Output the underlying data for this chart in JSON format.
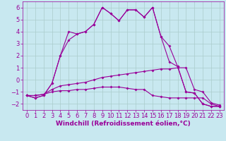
{
  "x": [
    0,
    1,
    2,
    3,
    4,
    5,
    6,
    7,
    8,
    9,
    10,
    11,
    12,
    13,
    14,
    15,
    16,
    17,
    18,
    19,
    20,
    21,
    22,
    23
  ],
  "line1": [
    -1.3,
    -1.5,
    -1.3,
    -0.3,
    2.0,
    4.0,
    3.8,
    4.0,
    4.6,
    6.0,
    5.5,
    4.9,
    5.8,
    5.8,
    5.2,
    6.0,
    3.6,
    2.8,
    1.1,
    -1.0,
    -1.1,
    -2.0,
    -2.2,
    -2.2
  ],
  "line2": [
    -1.3,
    -1.5,
    -1.3,
    -0.3,
    2.0,
    3.3,
    3.8,
    4.0,
    4.6,
    6.0,
    5.5,
    4.9,
    5.8,
    5.8,
    5.2,
    6.0,
    3.6,
    1.5,
    1.1,
    -1.0,
    -1.1,
    -2.0,
    -2.2,
    -2.2
  ],
  "line3": [
    -1.3,
    -1.3,
    -1.2,
    -0.8,
    -0.5,
    -0.4,
    -0.3,
    -0.2,
    0.0,
    0.2,
    0.3,
    0.4,
    0.5,
    0.6,
    0.7,
    0.8,
    0.9,
    0.9,
    1.0,
    1.0,
    -0.8,
    -1.0,
    -1.9,
    -2.1
  ],
  "line4": [
    -1.3,
    -1.3,
    -1.2,
    -1.0,
    -0.9,
    -0.9,
    -0.8,
    -0.8,
    -0.7,
    -0.6,
    -0.6,
    -0.6,
    -0.7,
    -0.8,
    -0.8,
    -1.3,
    -1.4,
    -1.5,
    -1.5,
    -1.5,
    -1.5,
    -1.5,
    -2.0,
    -2.2
  ],
  "line_color": "#990099",
  "bg_color": "#c8e8f0",
  "grid_color": "#aacccc",
  "ylim": [
    -2.5,
    6.5
  ],
  "xlim": [
    -0.5,
    23.5
  ],
  "yticks": [
    -2,
    -1,
    0,
    1,
    2,
    3,
    4,
    5,
    6
  ],
  "xticks": [
    0,
    1,
    2,
    3,
    4,
    5,
    6,
    7,
    8,
    9,
    10,
    11,
    12,
    13,
    14,
    15,
    16,
    17,
    18,
    19,
    20,
    21,
    22,
    23
  ],
  "xlabel": "Windchill (Refroidissement éolien,°C)",
  "xlabel_fontsize": 6.5,
  "tick_fontsize": 6.0,
  "marker": "D",
  "markersize": 2.0,
  "linewidth": 0.8
}
